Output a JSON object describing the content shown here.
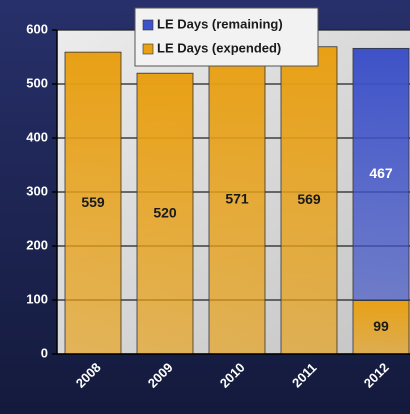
{
  "chart_data": {
    "type": "stacked_bar",
    "categories": [
      "2008",
      "2009",
      "2010",
      "2011",
      "2012"
    ],
    "series": [
      {
        "name": "LE Days (expended)",
        "color": "#e8a015",
        "values": [
          559,
          520,
          571,
          569,
          99
        ]
      },
      {
        "name": "LE Days (remaining)",
        "color": "#3e52c8",
        "values": [
          null,
          null,
          null,
          null,
          467
        ]
      }
    ],
    "ylim": [
      0,
      600
    ],
    "yticks": [
      0,
      100,
      200,
      300,
      400,
      500,
      600
    ],
    "grid": true,
    "legend": "top"
  }
}
